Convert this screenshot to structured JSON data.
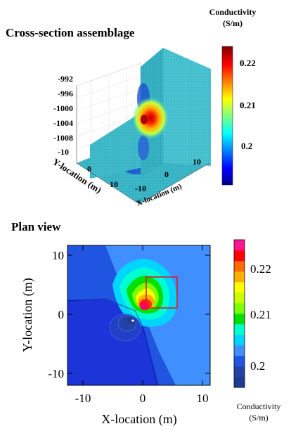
{
  "panel_top": {
    "title": "Cross-section assemblage",
    "colorbar": {
      "title_line1": "Conductivity",
      "title_line2": "(S/m)",
      "ticks": [
        "0.22",
        "0.21",
        "0.2"
      ]
    },
    "z_ticks": [
      "-992",
      "-996",
      "-1000",
      "-1004",
      "-1008"
    ],
    "y_axis": {
      "label": "Y-location (m)",
      "ticks": [
        "-10",
        "0",
        "10"
      ]
    },
    "x_axis": {
      "label": "X-location (m)",
      "ticks": [
        "10",
        "0",
        "-10"
      ]
    }
  },
  "panel_bottom": {
    "title": "Plan view",
    "x_axis": {
      "label": "X-location (m)",
      "ticks": [
        "-10",
        "0",
        "10"
      ]
    },
    "y_axis": {
      "label": "Y-location (m)",
      "ticks": [
        "10",
        "0",
        "-10"
      ]
    },
    "colorbar": {
      "title_line1": "Conductivity",
      "title_line2": "(S/m)",
      "ticks": [
        "0.22",
        "0.21",
        "0.2"
      ],
      "levels": [
        "#1f3a93",
        "#2442a8",
        "#1f55e0",
        "#3f8fff",
        "#00d5ff",
        "#00ffd0",
        "#00e000",
        "#7cff00",
        "#c8ff00",
        "#ffff00",
        "#ffb000",
        "#ff6a00",
        "#ff0000",
        "#ff1493"
      ]
    }
  },
  "chart_data": [
    {
      "type": "heatmap",
      "title": "Cross-section assemblage",
      "xlabel": "X-location (m)",
      "ylabel": "Y-location (m)",
      "colorbar_label": "Conductivity (S/m)",
      "colorbar_range": [
        0.195,
        0.225
      ],
      "z_ticks": [
        -992,
        -996,
        -1000,
        -1004,
        -1008
      ]
    },
    {
      "type": "heatmap",
      "title": "Plan view",
      "xlabel": "X-location (m)",
      "ylabel": "Y-location (m)",
      "xlim": [
        -12,
        11
      ],
      "ylim": [
        -12,
        12
      ],
      "colorbar_label": "Conductivity (S/m)",
      "colorbar_range": [
        0.195,
        0.225
      ],
      "anomaly_center": [
        0.5,
        1.2
      ],
      "anomaly_peak": 0.225,
      "background": 0.2,
      "marked_region": {
        "x": [
          1,
          6
        ],
        "y": [
          1,
          6
        ]
      }
    }
  ]
}
